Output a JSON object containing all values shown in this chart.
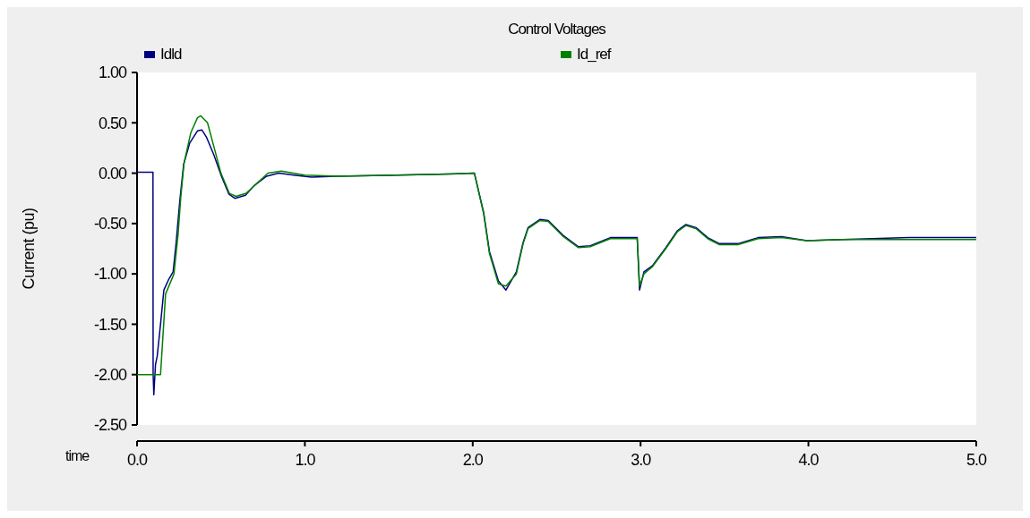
{
  "chart_data": {
    "type": "line",
    "title": "Control Voltages",
    "xlabel": "time",
    "ylabel": "Current (pu)",
    "legend": "top",
    "grid": false,
    "xlim": [
      0,
      5
    ],
    "ylim": [
      -2.5,
      1
    ],
    "xticks": [
      {
        "value": 0,
        "label": "0.0"
      },
      {
        "value": 1,
        "label": "1.0"
      },
      {
        "value": 2,
        "label": "2.0"
      },
      {
        "value": 3,
        "label": "3.0"
      },
      {
        "value": 4,
        "label": "4.0"
      },
      {
        "value": 5,
        "label": "5.0"
      }
    ],
    "yticks": [
      {
        "value": 1,
        "label": "1.00"
      },
      {
        "value": 0.5,
        "label": "0.50"
      },
      {
        "value": 0,
        "label": "0.00"
      },
      {
        "value": -0.5,
        "label": "-0.50"
      },
      {
        "value": -1,
        "label": "-1.00"
      },
      {
        "value": -1.5,
        "label": "-1.50"
      },
      {
        "value": -2,
        "label": "-2.00"
      },
      {
        "value": -2.5,
        "label": "-2.50"
      }
    ],
    "series": [
      {
        "name": "Idld",
        "color": "#000080",
        "x": [
          0,
          0.095,
          0.096,
          0.1,
          0.11,
          0.12,
          0.14,
          0.16,
          0.19,
          0.215,
          0.233,
          0.255,
          0.278,
          0.314,
          0.36,
          0.386,
          0.413,
          0.458,
          0.503,
          0.548,
          0.583,
          0.646,
          0.7,
          0.772,
          0.844,
          0.934,
          1.04,
          1.185,
          1.544,
          1.8,
          2.01,
          2.065,
          2.1,
          2.153,
          2.198,
          2.26,
          2.3,
          2.33,
          2.4,
          2.45,
          2.54,
          2.63,
          2.7,
          2.82,
          2.98,
          2.994,
          3.02,
          3.07,
          3.15,
          3.22,
          3.27,
          3.33,
          3.4,
          3.47,
          3.58,
          3.7,
          3.84,
          3.99,
          4.2,
          4.6,
          5
        ],
        "values": [
          0.01,
          0.01,
          -2.0,
          -2.2,
          -1.9,
          -1.82,
          -1.5,
          -1.16,
          -1.05,
          -0.98,
          -0.69,
          -0.27,
          0.09,
          0.3,
          0.42,
          0.43,
          0.36,
          0.18,
          -0.03,
          -0.21,
          -0.25,
          -0.22,
          -0.12,
          -0.03,
          0,
          -0.02,
          -0.04,
          -0.03,
          -0.02,
          -0.01,
          0,
          -0.39,
          -0.78,
          -1.07,
          -1.16,
          -0.98,
          -0.69,
          -0.54,
          -0.46,
          -0.47,
          -0.62,
          -0.73,
          -0.72,
          -0.64,
          -0.64,
          -1.16,
          -0.98,
          -0.92,
          -0.74,
          -0.57,
          -0.51,
          -0.54,
          -0.64,
          -0.7,
          -0.7,
          -0.64,
          -0.63,
          -0.67,
          -0.66,
          -0.64,
          -0.64
        ]
      },
      {
        "name": "Id_ref",
        "color": "#008000",
        "x": [
          0,
          0.14,
          0.17,
          0.22,
          0.245,
          0.26,
          0.28,
          0.32,
          0.36,
          0.38,
          0.42,
          0.46,
          0.5,
          0.55,
          0.59,
          0.65,
          0.78,
          0.86,
          1.0,
          1.2,
          1.544,
          1.8,
          2.01,
          2.065,
          2.1,
          2.153,
          2.198,
          2.26,
          2.3,
          2.33,
          2.4,
          2.45,
          2.54,
          2.63,
          2.7,
          2.82,
          2.98,
          2.994,
          3.02,
          3.07,
          3.15,
          3.22,
          3.27,
          3.33,
          3.4,
          3.47,
          3.58,
          3.7,
          3.84,
          3.99,
          4.2,
          4.6,
          5
        ],
        "values": [
          -2.0,
          -2.0,
          -1.2,
          -1.0,
          -0.6,
          -0.25,
          0.1,
          0.4,
          0.55,
          0.57,
          0.5,
          0.25,
          0.0,
          -0.2,
          -0.23,
          -0.2,
          0.0,
          0.02,
          -0.02,
          -0.03,
          -0.02,
          -0.01,
          0,
          -0.4,
          -0.8,
          -1.1,
          -1.12,
          -1.0,
          -0.7,
          -0.55,
          -0.47,
          -0.48,
          -0.63,
          -0.74,
          -0.73,
          -0.65,
          -0.65,
          -1.12,
          -1.0,
          -0.93,
          -0.75,
          -0.58,
          -0.52,
          -0.55,
          -0.65,
          -0.71,
          -0.71,
          -0.65,
          -0.64,
          -0.67,
          -0.66,
          -0.66,
          -0.66
        ]
      }
    ]
  }
}
